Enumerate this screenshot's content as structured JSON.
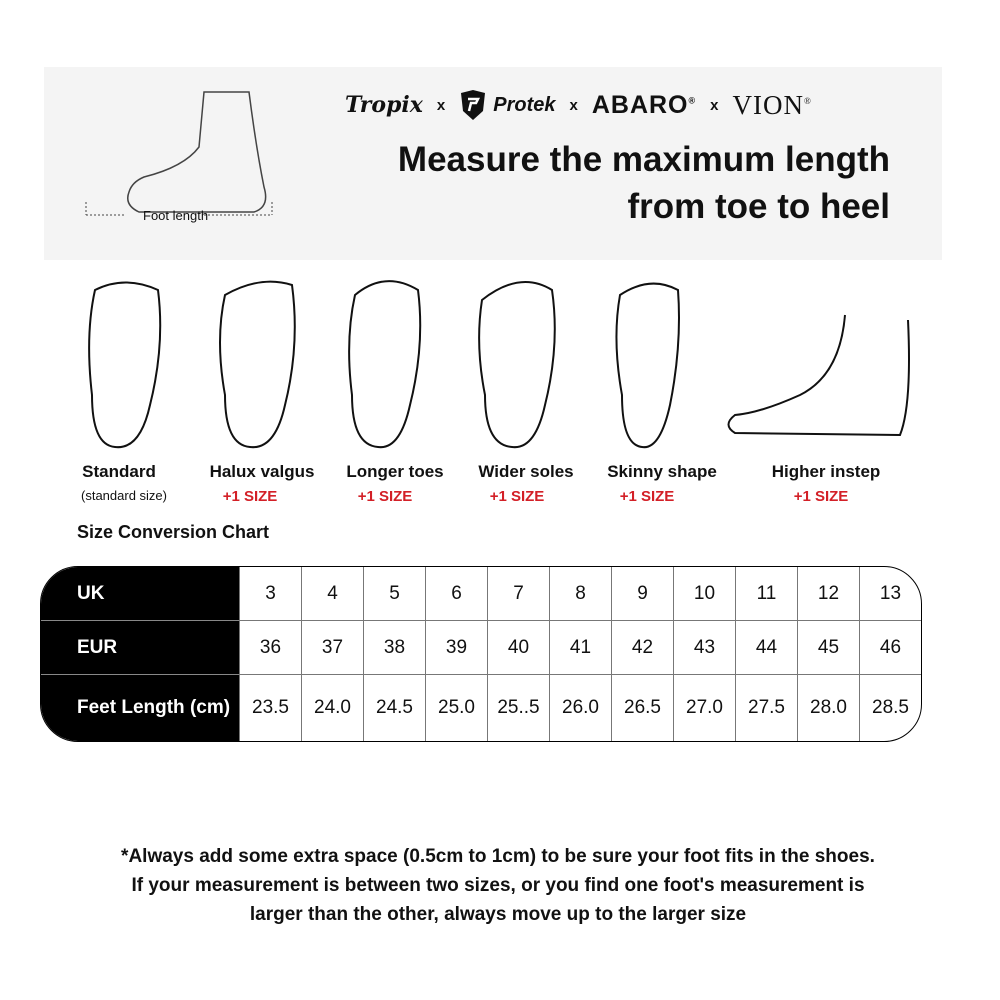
{
  "banner": {
    "brands": [
      "Tropix",
      "Protek",
      "ABARO",
      "VION"
    ],
    "separator": "x",
    "registered": "®",
    "headline_line1": "Measure the maximum length",
    "headline_line2": "from toe to heel",
    "foot_label": "Foot length"
  },
  "foot_types": [
    {
      "label": "Standard",
      "note": "(standard size)"
    },
    {
      "label": "Halux valgus",
      "note": "+1 SIZE"
    },
    {
      "label": "Longer toes",
      "note": "+1 SIZE"
    },
    {
      "label": "Wider soles",
      "note": "+1 SIZE"
    },
    {
      "label": "Skinny shape",
      "note": "+1 SIZE"
    },
    {
      "label": "Higher instep",
      "note": "+1 SIZE"
    }
  ],
  "accent_color": "#d32027",
  "chart_title": "Size Conversion Chart",
  "table": {
    "rows": [
      {
        "header": "UK",
        "values": [
          "3",
          "4",
          "5",
          "6",
          "7",
          "8",
          "9",
          "10",
          "11",
          "12",
          "13"
        ]
      },
      {
        "header": "EUR",
        "values": [
          "36",
          "37",
          "38",
          "39",
          "40",
          "41",
          "42",
          "43",
          "44",
          "45",
          "46"
        ]
      },
      {
        "header": "Feet Length (cm)",
        "values": [
          "23.5",
          "24.0",
          "24.5",
          "25.0",
          "25..5",
          "26.0",
          "26.5",
          "27.0",
          "27.5",
          "28.0",
          "28.5"
        ]
      }
    ]
  },
  "notes": [
    "*Always add some extra space (0.5cm to 1cm) to be sure your foot fits in the shoes.",
    "If your measurement is between two sizes, or you find one foot's measurement is",
    "larger than the other, always move up to the larger size"
  ]
}
